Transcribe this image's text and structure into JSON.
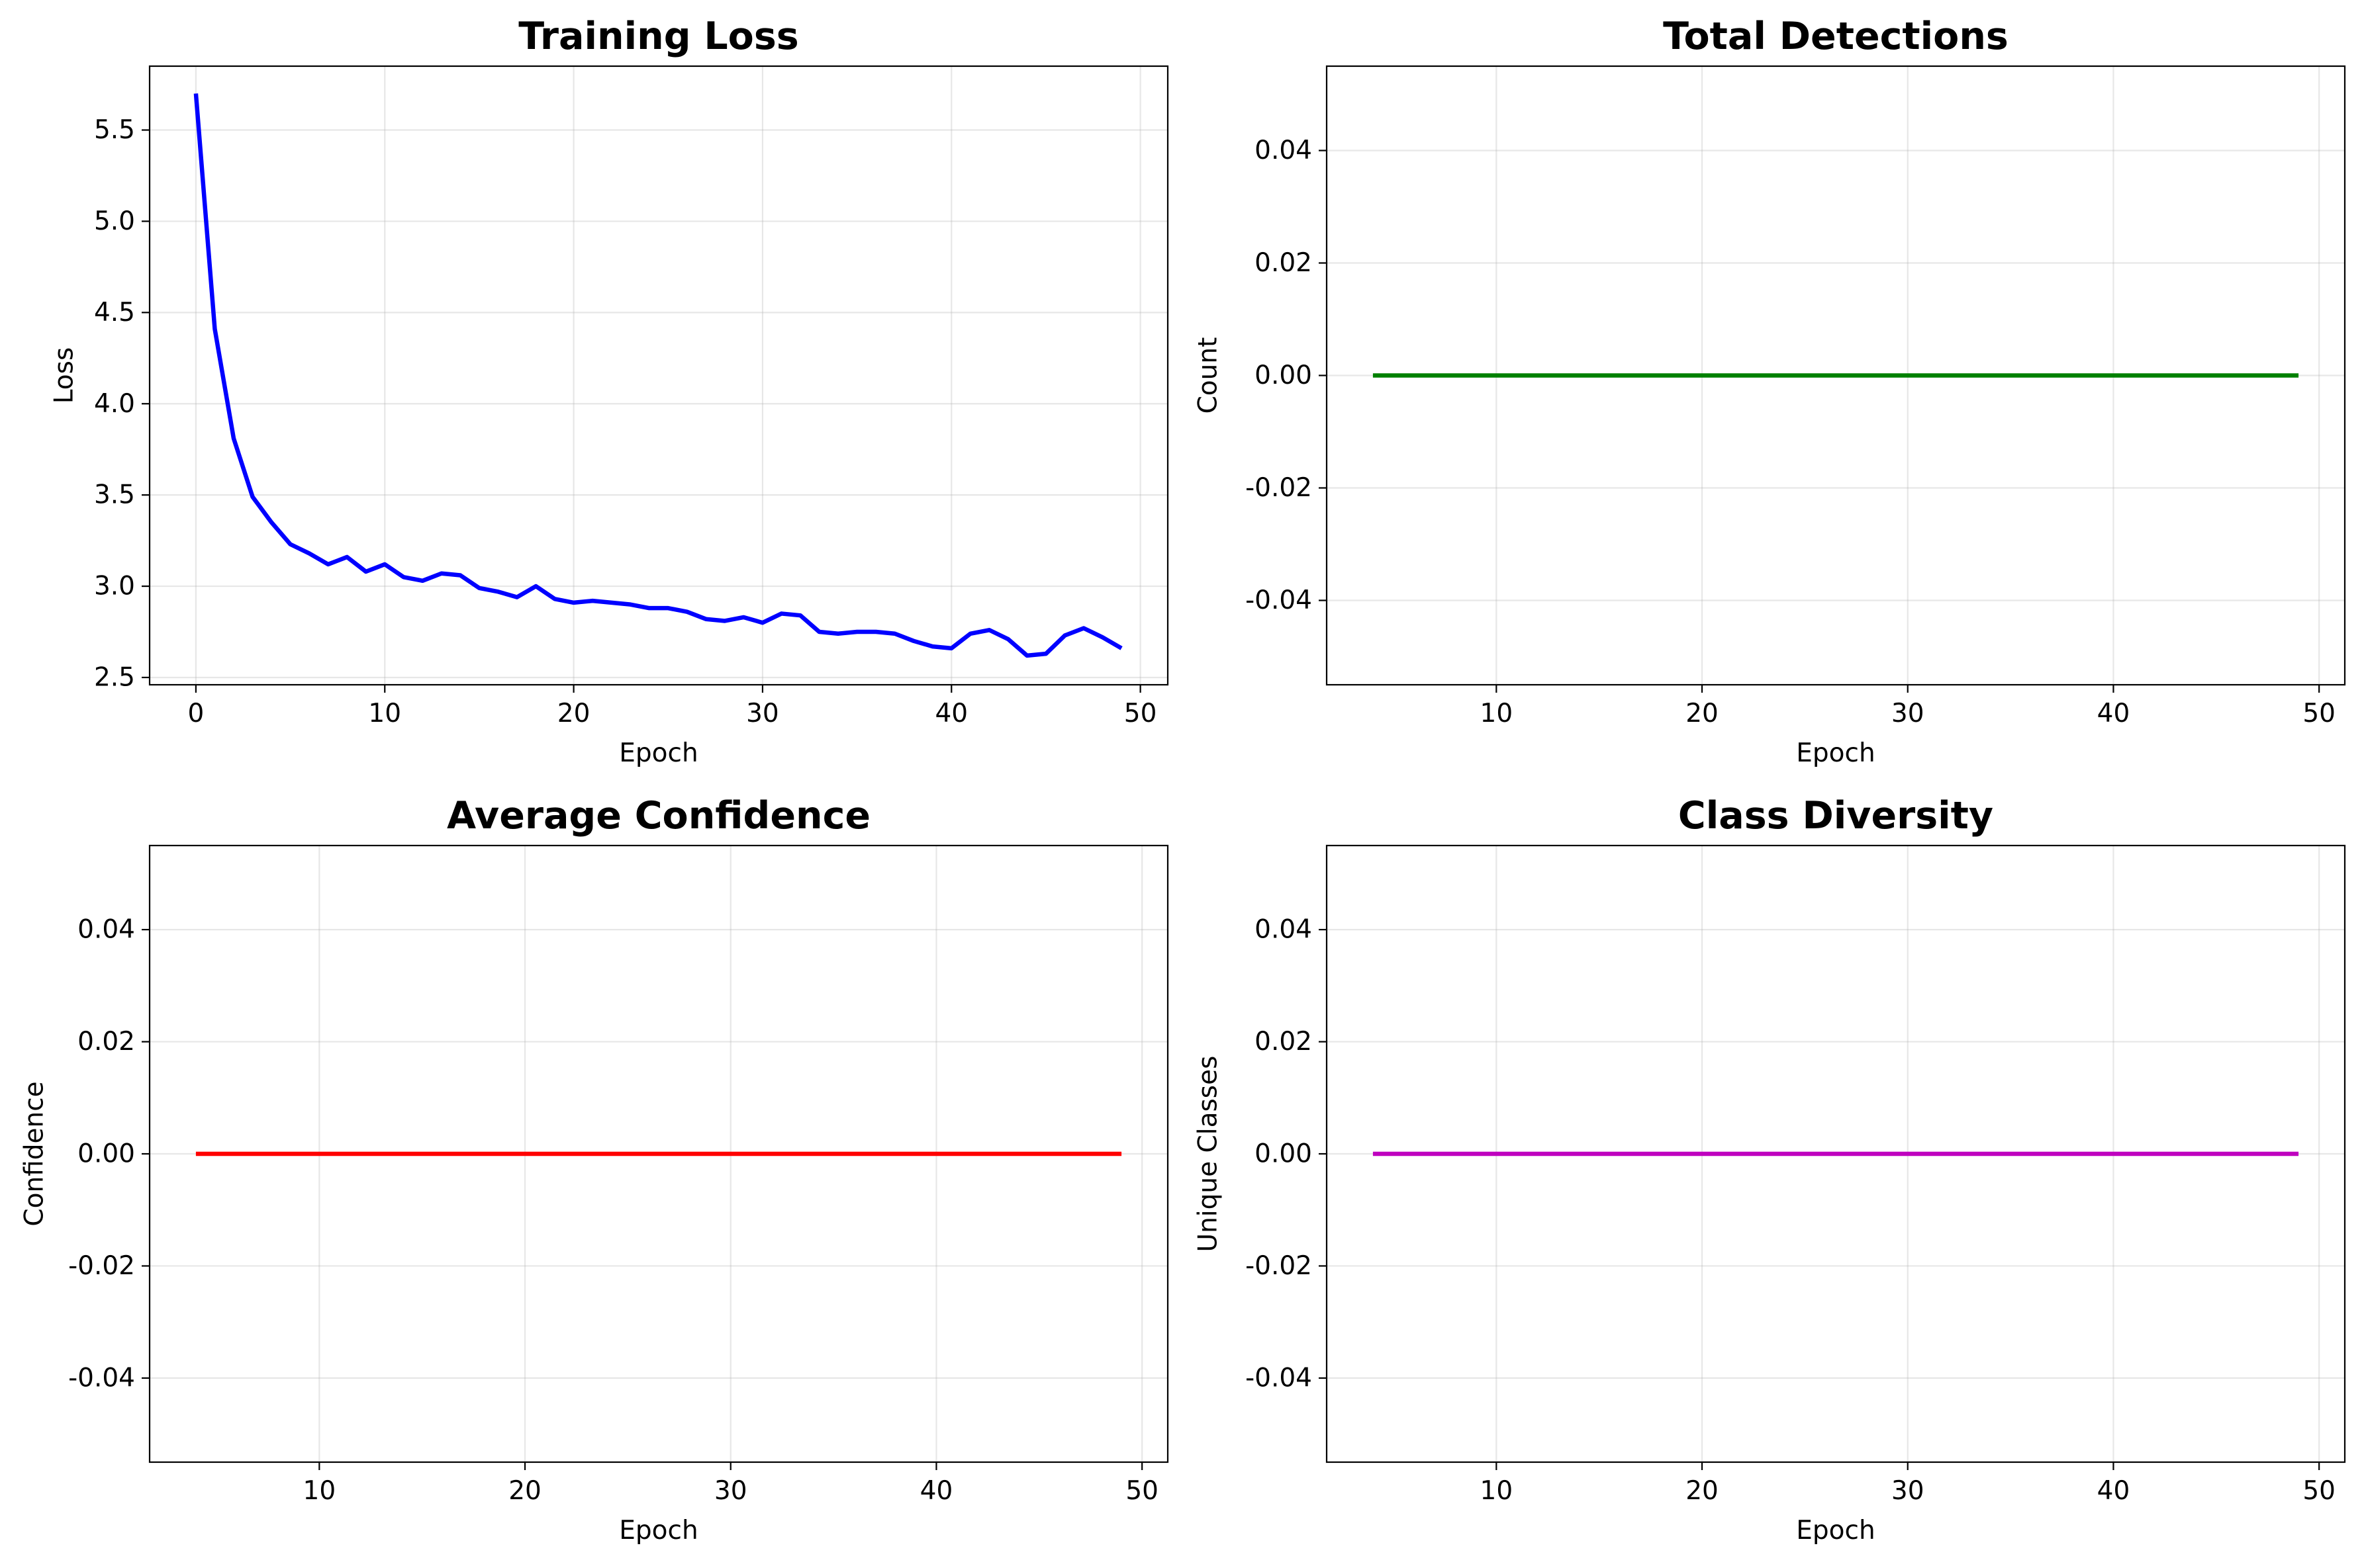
{
  "chart_data": [
    {
      "type": "line",
      "title": "Training Loss",
      "xlabel": "Epoch",
      "ylabel": "Loss",
      "xlim": [
        -2.45,
        51.45
      ],
      "ylim": [
        2.46,
        5.85
      ],
      "xticks": [
        0,
        10,
        20,
        30,
        40,
        50
      ],
      "yticks": [
        2.5,
        3.0,
        3.5,
        4.0,
        4.5,
        5.0,
        5.5
      ],
      "ytick_labels": [
        "2.5",
        "3.0",
        "3.5",
        "4.0",
        "4.5",
        "5.0",
        "5.5"
      ],
      "grid": true,
      "series": [
        {
          "color": "#0000ff",
          "x": [
            0,
            1,
            2,
            3,
            4,
            5,
            6,
            7,
            8,
            9,
            10,
            11,
            12,
            13,
            14,
            15,
            16,
            17,
            18,
            19,
            20,
            21,
            22,
            23,
            24,
            25,
            26,
            27,
            28,
            29,
            30,
            31,
            32,
            33,
            34,
            35,
            36,
            37,
            38,
            39,
            40,
            41,
            42,
            43,
            44,
            45,
            46,
            47,
            48,
            49
          ],
          "y": [
            5.7,
            4.41,
            3.81,
            3.49,
            3.35,
            3.23,
            3.18,
            3.12,
            3.16,
            3.08,
            3.12,
            3.05,
            3.03,
            3.07,
            3.06,
            2.99,
            2.97,
            2.94,
            3.0,
            2.93,
            2.91,
            2.92,
            2.91,
            2.9,
            2.88,
            2.88,
            2.86,
            2.82,
            2.81,
            2.83,
            2.8,
            2.85,
            2.84,
            2.75,
            2.74,
            2.75,
            2.75,
            2.74,
            2.7,
            2.67,
            2.66,
            2.74,
            2.76,
            2.71,
            2.62,
            2.63,
            2.73,
            2.77,
            2.72,
            2.66
          ]
        }
      ]
    },
    {
      "type": "line",
      "title": "Total Detections",
      "xlabel": "Epoch",
      "ylabel": "Count",
      "xlim": [
        1.75,
        51.25
      ],
      "ylim": [
        -0.055,
        0.055
      ],
      "xticks": [
        10,
        20,
        30,
        40,
        50
      ],
      "yticks": [
        -0.04,
        -0.02,
        0.0,
        0.02,
        0.04
      ],
      "ytick_labels": [
        "-0.04",
        "-0.02",
        "0.00",
        "0.02",
        "0.04"
      ],
      "grid": true,
      "series": [
        {
          "color": "#008000",
          "x": [
            4,
            49
          ],
          "y": [
            0,
            0
          ]
        }
      ]
    },
    {
      "type": "line",
      "title": "Average Confidence",
      "xlabel": "Epoch",
      "ylabel": "Confidence",
      "xlim": [
        1.75,
        51.25
      ],
      "ylim": [
        -0.055,
        0.055
      ],
      "xticks": [
        10,
        20,
        30,
        40,
        50
      ],
      "yticks": [
        -0.04,
        -0.02,
        0.0,
        0.02,
        0.04
      ],
      "ytick_labels": [
        "-0.04",
        "-0.02",
        "0.00",
        "0.02",
        "0.04"
      ],
      "grid": true,
      "series": [
        {
          "color": "#ff0000",
          "x": [
            4,
            49
          ],
          "y": [
            0,
            0
          ]
        }
      ]
    },
    {
      "type": "line",
      "title": "Class Diversity",
      "xlabel": "Epoch",
      "ylabel": "Unique Classes",
      "xlim": [
        1.75,
        51.25
      ],
      "ylim": [
        -0.055,
        0.055
      ],
      "xticks": [
        10,
        20,
        30,
        40,
        50
      ],
      "yticks": [
        -0.04,
        -0.02,
        0.0,
        0.02,
        0.04
      ],
      "ytick_labels": [
        "-0.04",
        "-0.02",
        "0.00",
        "0.02",
        "0.04"
      ],
      "grid": true,
      "series": [
        {
          "color": "#bf00bf",
          "x": [
            4,
            49
          ],
          "y": [
            0,
            0
          ]
        }
      ]
    }
  ]
}
